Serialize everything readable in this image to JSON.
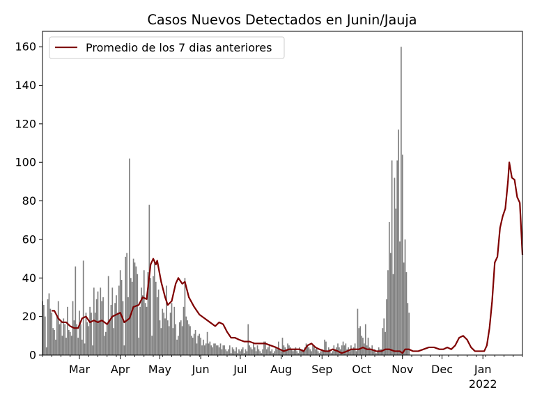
{
  "chart_data": {
    "type": "bar",
    "title": "Casos Nuevos Detectados en Junin/Jauja",
    "xlabel": "",
    "ylabel": "",
    "x_range": [
      "2021-02-01",
      "2022-01-31"
    ],
    "ylim": [
      0,
      168
    ],
    "y_ticks": [
      0,
      20,
      40,
      60,
      80,
      100,
      120,
      140,
      160
    ],
    "x_ticks": [
      {
        "date": "2021-03-01",
        "label": "Mar"
      },
      {
        "date": "2021-04-01",
        "label": "Apr"
      },
      {
        "date": "2021-05-01",
        "label": "May"
      },
      {
        "date": "2021-06-01",
        "label": "Jun"
      },
      {
        "date": "2021-07-01",
        "label": "Jul"
      },
      {
        "date": "2021-08-01",
        "label": "Aug"
      },
      {
        "date": "2021-09-01",
        "label": "Sep"
      },
      {
        "date": "2021-10-01",
        "label": "Oct"
      },
      {
        "date": "2021-11-01",
        "label": "Nov"
      },
      {
        "date": "2021-12-01",
        "label": "Dec"
      },
      {
        "date": "2022-01-01",
        "label": "Jan",
        "sublabel": "2022"
      }
    ],
    "legend": {
      "placement": "top-left",
      "label": "Promedio de los 7 dias anteriores"
    },
    "grid": false,
    "colors": {
      "bars": "#808080",
      "line": "#7f0000"
    },
    "daily_cases": {
      "start_date": "2021-02-01",
      "values": [
        28,
        26,
        20,
        4,
        29,
        32,
        24,
        22,
        14,
        13,
        8,
        20,
        28,
        16,
        17,
        10,
        19,
        16,
        9,
        25,
        13,
        12,
        10,
        28,
        18,
        46,
        16,
        9,
        23,
        16,
        8,
        49,
        6,
        22,
        17,
        15,
        25,
        22,
        5,
        35,
        22,
        29,
        33,
        18,
        35,
        28,
        30,
        10,
        12,
        16,
        41,
        18,
        26,
        35,
        14,
        27,
        31,
        22,
        36,
        44,
        39,
        28,
        5,
        51,
        53,
        30,
        102,
        40,
        38,
        50,
        48,
        46,
        42,
        9,
        25,
        35,
        31,
        44,
        27,
        25,
        43,
        78,
        40,
        10,
        41,
        49,
        38,
        30,
        34,
        18,
        14,
        24,
        22,
        19,
        36,
        18,
        15,
        22,
        27,
        14,
        25,
        16,
        8,
        10,
        17,
        18,
        15,
        25,
        40,
        20,
        18,
        16,
        15,
        10,
        9,
        11,
        13,
        6,
        10,
        11,
        9,
        5,
        8,
        5,
        6,
        12,
        6,
        7,
        5,
        4,
        6,
        6,
        5,
        5,
        4,
        6,
        3,
        5,
        5,
        3,
        2,
        3,
        5,
        1,
        4,
        3,
        2,
        4,
        1,
        3,
        2,
        3,
        4,
        1,
        3,
        2,
        16,
        5,
        4,
        3,
        6,
        4,
        2,
        5,
        3,
        2,
        1,
        3,
        7,
        7,
        3,
        4,
        5,
        2,
        3,
        1,
        2,
        4,
        3,
        7,
        3,
        2,
        9,
        5,
        4,
        3,
        6,
        5,
        4,
        3,
        2,
        3,
        4,
        2,
        1,
        4,
        3,
        3,
        2,
        4,
        6,
        5,
        4,
        3,
        2,
        5,
        4,
        3,
        4,
        2,
        1,
        2,
        3,
        2,
        8,
        7,
        2,
        4,
        3,
        1,
        2,
        5,
        3,
        4,
        6,
        4,
        3,
        5,
        7,
        5,
        6,
        3,
        4,
        2,
        5,
        3,
        4,
        6,
        2,
        24,
        14,
        15,
        10,
        9,
        6,
        16,
        5,
        9,
        4,
        3,
        5,
        2,
        3,
        1,
        2,
        4,
        3,
        3,
        14,
        19,
        12,
        29,
        44,
        69,
        53,
        101,
        42,
        92,
        76,
        101,
        117,
        59,
        160,
        104,
        48,
        60,
        43,
        27,
        22
      ]
    },
    "seven_day_average": {
      "label": "Promedio de los 7 dias anteriores",
      "points": [
        [
          "2021-02-08",
          23
        ],
        [
          "2021-02-10",
          23
        ],
        [
          "2021-02-13",
          19
        ],
        [
          "2021-02-16",
          17
        ],
        [
          "2021-02-19",
          17
        ],
        [
          "2021-02-22",
          15
        ],
        [
          "2021-02-25",
          14
        ],
        [
          "2021-02-28",
          14
        ],
        [
          "2021-03-03",
          19
        ],
        [
          "2021-03-06",
          20
        ],
        [
          "2021-03-09",
          17
        ],
        [
          "2021-03-12",
          18
        ],
        [
          "2021-03-15",
          17
        ],
        [
          "2021-03-18",
          18
        ],
        [
          "2021-03-22",
          16
        ],
        [
          "2021-03-26",
          20
        ],
        [
          "2021-03-29",
          21
        ],
        [
          "2021-04-01",
          22
        ],
        [
          "2021-04-04",
          17
        ],
        [
          "2021-04-08",
          19
        ],
        [
          "2021-04-11",
          25
        ],
        [
          "2021-04-15",
          26
        ],
        [
          "2021-04-18",
          30
        ],
        [
          "2021-04-21",
          29
        ],
        [
          "2021-04-24",
          47
        ],
        [
          "2021-04-26",
          50
        ],
        [
          "2021-04-28",
          47
        ],
        [
          "2021-04-29",
          49
        ],
        [
          "2021-05-02",
          38
        ],
        [
          "2021-05-05",
          30
        ],
        [
          "2021-05-07",
          26
        ],
        [
          "2021-05-10",
          28
        ],
        [
          "2021-05-13",
          37
        ],
        [
          "2021-05-15",
          40
        ],
        [
          "2021-05-18",
          37
        ],
        [
          "2021-05-20",
          38
        ],
        [
          "2021-05-23",
          30
        ],
        [
          "2021-05-27",
          25
        ],
        [
          "2021-05-31",
          21
        ],
        [
          "2021-06-04",
          19
        ],
        [
          "2021-06-08",
          17
        ],
        [
          "2021-06-12",
          15
        ],
        [
          "2021-06-15",
          17
        ],
        [
          "2021-06-18",
          16
        ],
        [
          "2021-06-21",
          12
        ],
        [
          "2021-06-24",
          9
        ],
        [
          "2021-06-27",
          9
        ],
        [
          "2021-06-30",
          8
        ],
        [
          "2021-07-04",
          7
        ],
        [
          "2021-07-08",
          7
        ],
        [
          "2021-07-12",
          6
        ],
        [
          "2021-07-16",
          6
        ],
        [
          "2021-07-20",
          6
        ],
        [
          "2021-07-24",
          5
        ],
        [
          "2021-07-28",
          4
        ],
        [
          "2021-07-31",
          3
        ],
        [
          "2021-08-03",
          2
        ],
        [
          "2021-08-07",
          3
        ],
        [
          "2021-08-11",
          3
        ],
        [
          "2021-08-15",
          3
        ],
        [
          "2021-08-18",
          2
        ],
        [
          "2021-08-21",
          5
        ],
        [
          "2021-08-24",
          6
        ],
        [
          "2021-08-27",
          4
        ],
        [
          "2021-08-30",
          3
        ],
        [
          "2021-09-03",
          2
        ],
        [
          "2021-09-06",
          2
        ],
        [
          "2021-09-09",
          3
        ],
        [
          "2021-09-13",
          2
        ],
        [
          "2021-09-16",
          1
        ],
        [
          "2021-09-20",
          2
        ],
        [
          "2021-09-23",
          3
        ],
        [
          "2021-09-26",
          3
        ],
        [
          "2021-09-29",
          3
        ],
        [
          "2021-10-02",
          4
        ],
        [
          "2021-10-05",
          3
        ],
        [
          "2021-10-08",
          3
        ],
        [
          "2021-10-12",
          2
        ],
        [
          "2021-10-16",
          2
        ],
        [
          "2021-10-19",
          3
        ],
        [
          "2021-10-22",
          3
        ],
        [
          "2021-10-26",
          2
        ],
        [
          "2021-10-30",
          2
        ],
        [
          "2021-11-01",
          1
        ],
        [
          "2021-11-03",
          3
        ],
        [
          "2021-11-06",
          3
        ],
        [
          "2021-11-09",
          2
        ],
        [
          "2021-11-13",
          2
        ],
        [
          "2021-11-17",
          3
        ],
        [
          "2021-11-21",
          4
        ],
        [
          "2021-11-25",
          4
        ],
        [
          "2021-11-29",
          3
        ],
        [
          "2021-12-02",
          3
        ],
        [
          "2021-12-05",
          4
        ],
        [
          "2021-12-08",
          3
        ],
        [
          "2021-12-11",
          5
        ],
        [
          "2021-12-14",
          9
        ],
        [
          "2021-12-17",
          10
        ],
        [
          "2021-12-20",
          8
        ],
        [
          "2021-12-23",
          4
        ],
        [
          "2021-12-26",
          2
        ],
        [
          "2021-12-30",
          2
        ],
        [
          "2022-01-02",
          2
        ],
        [
          "2022-01-04",
          5
        ],
        [
          "2022-01-06",
          14
        ],
        [
          "2022-01-08",
          28
        ],
        [
          "2022-01-10",
          48
        ],
        [
          "2022-01-12",
          51
        ],
        [
          "2022-01-14",
          66
        ],
        [
          "2022-01-16",
          72
        ],
        [
          "2022-01-18",
          76
        ],
        [
          "2022-01-20",
          90
        ],
        [
          "2022-01-21",
          100
        ],
        [
          "2022-01-23",
          92
        ],
        [
          "2022-01-25",
          91
        ],
        [
          "2022-01-27",
          82
        ],
        [
          "2022-01-29",
          79
        ],
        [
          "2022-01-31",
          52
        ]
      ]
    }
  }
}
